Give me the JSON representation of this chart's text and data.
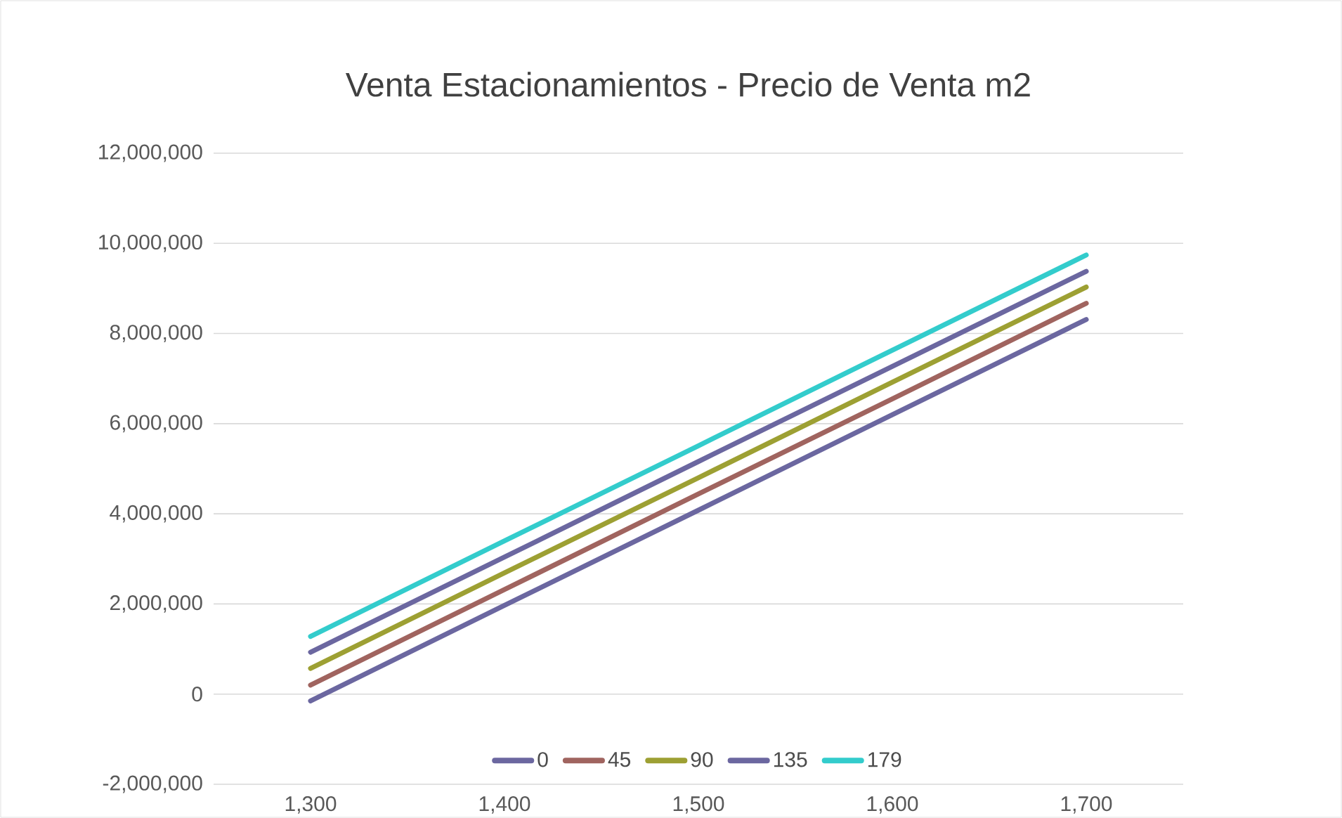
{
  "chart_data": {
    "type": "line",
    "title": "Venta Estacionamientos - Precio de Venta m2",
    "x": [
      1300,
      1400,
      1500,
      1600,
      1700
    ],
    "series": [
      {
        "name": "0",
        "color": "#6b67a0",
        "values": [
          -150000,
          1970000,
          4080000,
          6200000,
          8310000
        ]
      },
      {
        "name": "45",
        "color": "#a0645f",
        "values": [
          200000,
          2320000,
          4440000,
          6550000,
          8670000
        ]
      },
      {
        "name": "90",
        "color": "#9da033",
        "values": [
          570000,
          2690000,
          4800000,
          6920000,
          9030000
        ]
      },
      {
        "name": "135",
        "color": "#6b67a0",
        "values": [
          930000,
          3040000,
          5160000,
          7270000,
          9380000
        ]
      },
      {
        "name": "179",
        "color": "#33cccc",
        "values": [
          1280000,
          3400000,
          5510000,
          7630000,
          9740000
        ]
      }
    ],
    "xlim": [
      1250,
      1750
    ],
    "xticks": [
      {
        "value": 1300,
        "label": "1,300"
      },
      {
        "value": 1400,
        "label": "1,400"
      },
      {
        "value": 1500,
        "label": "1,500"
      },
      {
        "value": 1600,
        "label": "1,600"
      },
      {
        "value": 1700,
        "label": "1,700"
      }
    ],
    "ylim": [
      -2000000,
      12000000
    ],
    "yticks": [
      {
        "value": -2000000,
        "label": "-2,000,000"
      },
      {
        "value": 0,
        "label": "0"
      },
      {
        "value": 2000000,
        "label": "2,000,000"
      },
      {
        "value": 4000000,
        "label": "4,000,000"
      },
      {
        "value": 6000000,
        "label": "6,000,000"
      },
      {
        "value": 8000000,
        "label": "8,000,000"
      },
      {
        "value": 10000000,
        "label": "10,000,000"
      },
      {
        "value": 12000000,
        "label": "12,000,000"
      }
    ],
    "grid": "y",
    "legend": "bottom",
    "marker": "none",
    "line_style": "solid"
  }
}
